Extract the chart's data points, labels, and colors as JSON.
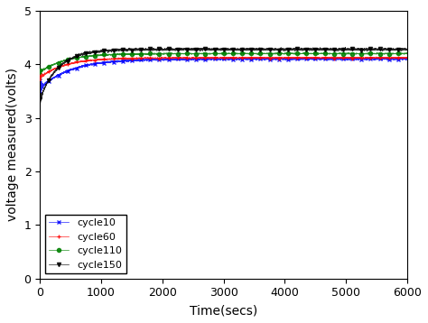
{
  "xlabel": "Time(secs)",
  "ylabel": "voltage measured(volts)",
  "xlim": [
    0,
    6000
  ],
  "ylim": [
    0,
    5
  ],
  "xticks": [
    0,
    1000,
    2000,
    3000,
    4000,
    5000,
    6000
  ],
  "yticks": [
    0,
    1,
    2,
    3,
    4,
    5
  ],
  "series": [
    {
      "label": "cycle10",
      "color": "blue",
      "marker": "x",
      "markevery": 150,
      "start_voltage": 3.55,
      "plateau_voltage": 4.1,
      "tau1": 30,
      "tau2": 500,
      "noise_early": 0.08,
      "noise_late": 0.008,
      "zorder": 2,
      "linewidth": 0.5
    },
    {
      "label": "cycle60",
      "color": "red",
      "marker": "+",
      "markevery": 150,
      "start_voltage": 3.75,
      "plateau_voltage": 4.12,
      "tau1": 30,
      "tau2": 400,
      "noise_early": 0.04,
      "noise_late": 0.006,
      "zorder": 3,
      "linewidth": 0.5
    },
    {
      "label": "cycle110",
      "color": "green",
      "marker": "o",
      "markevery": 150,
      "start_voltage": 3.85,
      "plateau_voltage": 4.2,
      "tau1": 30,
      "tau2": 400,
      "noise_early": 0.03,
      "noise_late": 0.005,
      "zorder": 4,
      "linewidth": 0.5
    },
    {
      "label": "cycle150",
      "color": "black",
      "marker": "v",
      "markevery": 150,
      "start_voltage": 3.35,
      "plateau_voltage": 4.28,
      "tau1": 20,
      "tau2": 300,
      "noise_early": 0.05,
      "noise_late": 0.01,
      "zorder": 5,
      "linewidth": 0.5
    }
  ],
  "legend_loc": "lower left",
  "legend_fontsize": 8,
  "background_color": "#ffffff",
  "figsize": [
    4.74,
    3.58
  ],
  "dpi": 100
}
